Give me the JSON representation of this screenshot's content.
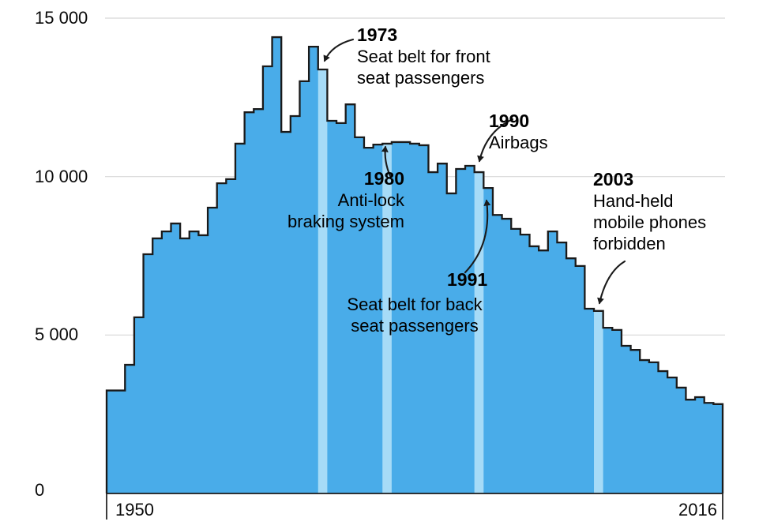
{
  "chart_data": {
    "type": "area-step",
    "title": "",
    "xlabel": "",
    "ylabel": "",
    "x_start": 1950,
    "x_end_exclusive": 2017,
    "x": [
      1950,
      1951,
      1952,
      1953,
      1954,
      1955,
      1956,
      1957,
      1958,
      1959,
      1960,
      1961,
      1962,
      1963,
      1964,
      1965,
      1966,
      1967,
      1968,
      1969,
      1970,
      1971,
      1972,
      1973,
      1974,
      1975,
      1976,
      1977,
      1978,
      1979,
      1980,
      1981,
      1982,
      1983,
      1984,
      1985,
      1986,
      1987,
      1988,
      1989,
      1990,
      1991,
      1992,
      1993,
      1994,
      1995,
      1996,
      1997,
      1998,
      1999,
      2000,
      2001,
      2002,
      2003,
      2004,
      2005,
      2006,
      2007,
      2008,
      2009,
      2010,
      2011,
      2012,
      2013,
      2014,
      2015,
      2016
    ],
    "values": [
      3250,
      3250,
      4060,
      5560,
      7550,
      8050,
      8270,
      8520,
      8050,
      8270,
      8150,
      9020,
      9790,
      9920,
      11040,
      12030,
      12130,
      13480,
      14400,
      11410,
      11910,
      13010,
      14100,
      13380,
      11760,
      11690,
      12280,
      11240,
      10910,
      11010,
      11040,
      11090,
      11090,
      11040,
      10990,
      10140,
      10410,
      9470,
      10240,
      10340,
      10140,
      9640,
      8790,
      8670,
      8350,
      8170,
      7800,
      7670,
      8270,
      7920,
      7420,
      7180,
      5830,
      5760,
      5230,
      5160,
      4660,
      4530,
      4210,
      4140,
      3860,
      3660,
      3340,
      2960,
      3040,
      2860,
      2820
    ],
    "ylim": [
      0,
      15000
    ],
    "grid": "horizontal",
    "legend": "none",
    "highlight_years": [
      1973,
      1980,
      1990,
      2003
    ],
    "colors": {
      "bar_fill": "#49ACE9",
      "bar_highlight": "#A6DBF7",
      "outline": "#1A1A1A",
      "gridline": "#D8D8D8",
      "axis": "#1A1A1A",
      "text": "#000000"
    }
  },
  "axes": {
    "y_ticks": [
      {
        "value": 15000,
        "label": "15 000"
      },
      {
        "value": 10000,
        "label": "10 000"
      },
      {
        "value": 5000,
        "label": "5 000"
      },
      {
        "value": 0,
        "label": "0"
      }
    ],
    "x_ticks": [
      {
        "year": 1950,
        "label": "1950"
      },
      {
        "year": 2016,
        "label": "2016"
      }
    ]
  },
  "annotations": [
    {
      "year": "1973",
      "text": "Seat belt for front\nseat passengers"
    },
    {
      "year": "1980",
      "text": "Anti-lock\nbraking system"
    },
    {
      "year": "1990",
      "text": "Airbags"
    },
    {
      "year": "1991",
      "text": "Seat belt for back\nseat passengers"
    },
    {
      "year": "2003",
      "text": "Hand-held\nmobile phones\nforbidden"
    }
  ]
}
